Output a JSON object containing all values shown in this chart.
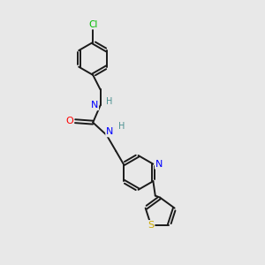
{
  "background_color": "#e8e8e8",
  "bond_color": "#1a1a1a",
  "atom_colors": {
    "Cl": "#00bb00",
    "N": "#0000ff",
    "O": "#ff0000",
    "S": "#ccaa00",
    "H": "#4a9090",
    "C": "#1a1a1a"
  },
  "figsize": [
    3.0,
    3.0
  ],
  "dpi": 100
}
